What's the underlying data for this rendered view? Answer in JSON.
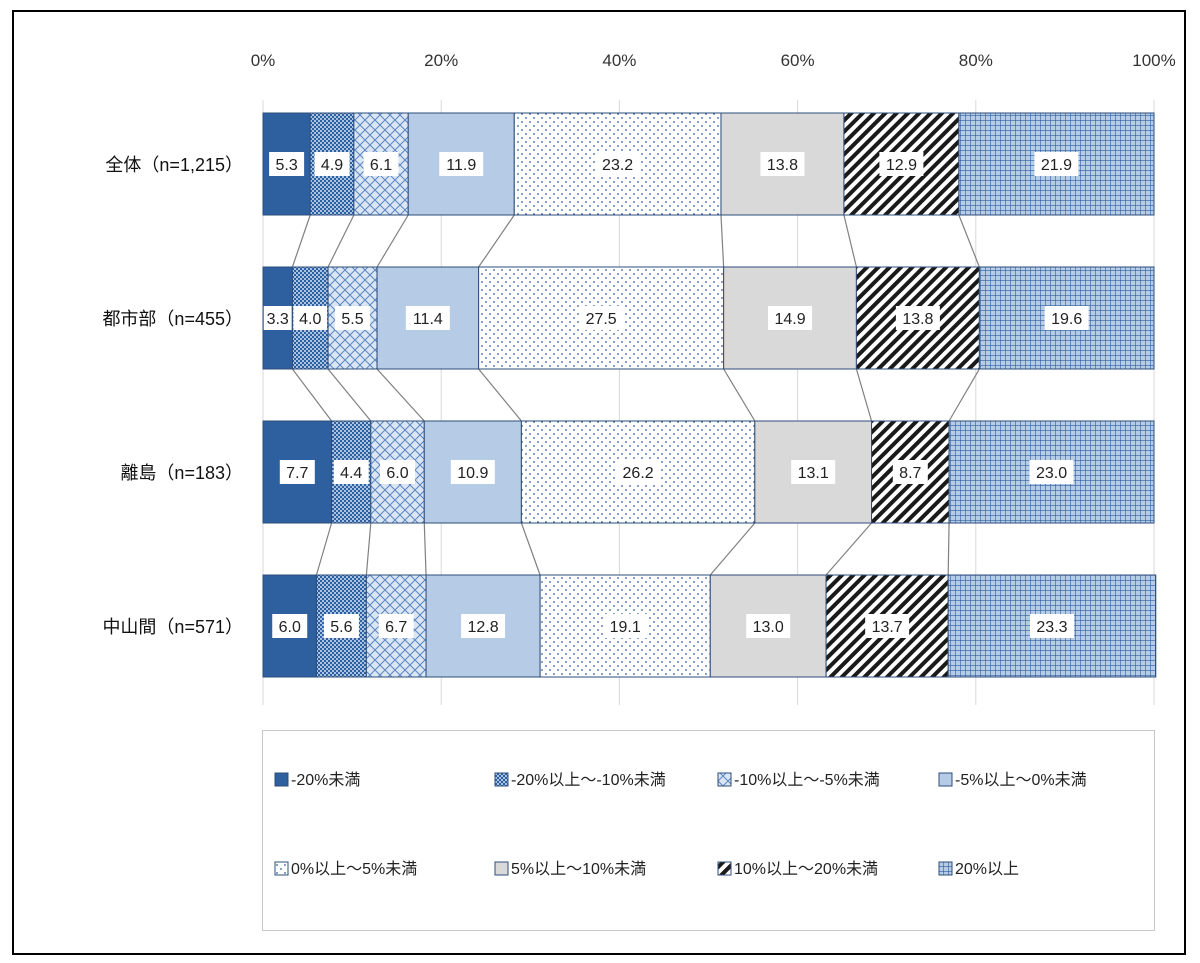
{
  "chart_data": {
    "type": "bar",
    "orientation": "horizontal-stacked-100",
    "categories": [
      "全体（n=1,215）",
      "都市部（n=455）",
      "離島（n=183）",
      "中山間（n=571）"
    ],
    "x_ticks": [
      "0%",
      "20%",
      "40%",
      "60%",
      "80%",
      "100%"
    ],
    "xlim": [
      0,
      100
    ],
    "grid": true,
    "legend_position": "bottom",
    "series": [
      {
        "name": "-20%未満",
        "values": [
          5.3,
          3.3,
          7.7,
          6.0
        ],
        "labels": [
          "5.3",
          "3.3",
          "7.7",
          "6.0"
        ],
        "color": "#2e5f9e",
        "pattern": "solid"
      },
      {
        "name": "-20%以上～-10%未満",
        "values": [
          4.9,
          4.0,
          4.4,
          5.6
        ],
        "labels": [
          "4.9",
          "4.0",
          "4.4",
          "5.6"
        ],
        "color": "#4a7ab8",
        "pattern": "dots-dense"
      },
      {
        "name": "-10%以上～-5%未満",
        "values": [
          6.1,
          5.5,
          6.0,
          6.7
        ],
        "labels": [
          "6.1",
          "5.5",
          "6.0",
          "6.7"
        ],
        "color": "#7fa6d4",
        "pattern": "diamond"
      },
      {
        "name": "-5%以上～0%未満",
        "values": [
          11.9,
          11.4,
          10.9,
          12.8
        ],
        "labels": [
          "11.9",
          "11.4",
          "10.9",
          "12.8"
        ],
        "color": "#b6cbe6",
        "pattern": "solid-light"
      },
      {
        "name": "0%以上～5%未満",
        "values": [
          23.2,
          27.5,
          26.2,
          19.1
        ],
        "labels": [
          "23.2",
          "27.5",
          "26.2",
          "19.1"
        ],
        "color": "#ffffff",
        "pattern": "dots-sparse"
      },
      {
        "name": "5%以上～10%未満",
        "values": [
          13.8,
          14.9,
          13.1,
          13.0
        ],
        "labels": [
          "13.8",
          "14.9",
          "13.1",
          "13.0"
        ],
        "color": "#d9d9d9",
        "pattern": "solid-gray"
      },
      {
        "name": "10%以上～20%未満",
        "values": [
          12.9,
          13.8,
          8.7,
          13.7
        ],
        "labels": [
          "12.9",
          "13.8",
          "8.7",
          "13.7"
        ],
        "color": "#1a1a1a",
        "pattern": "diagonal"
      },
      {
        "name": "20%以上",
        "values": [
          21.9,
          19.6,
          23.0,
          23.3
        ],
        "labels": [
          "21.9",
          "19.6",
          "23.0",
          "23.3"
        ],
        "color": "#2e5f9e",
        "pattern": "grid"
      }
    ]
  }
}
